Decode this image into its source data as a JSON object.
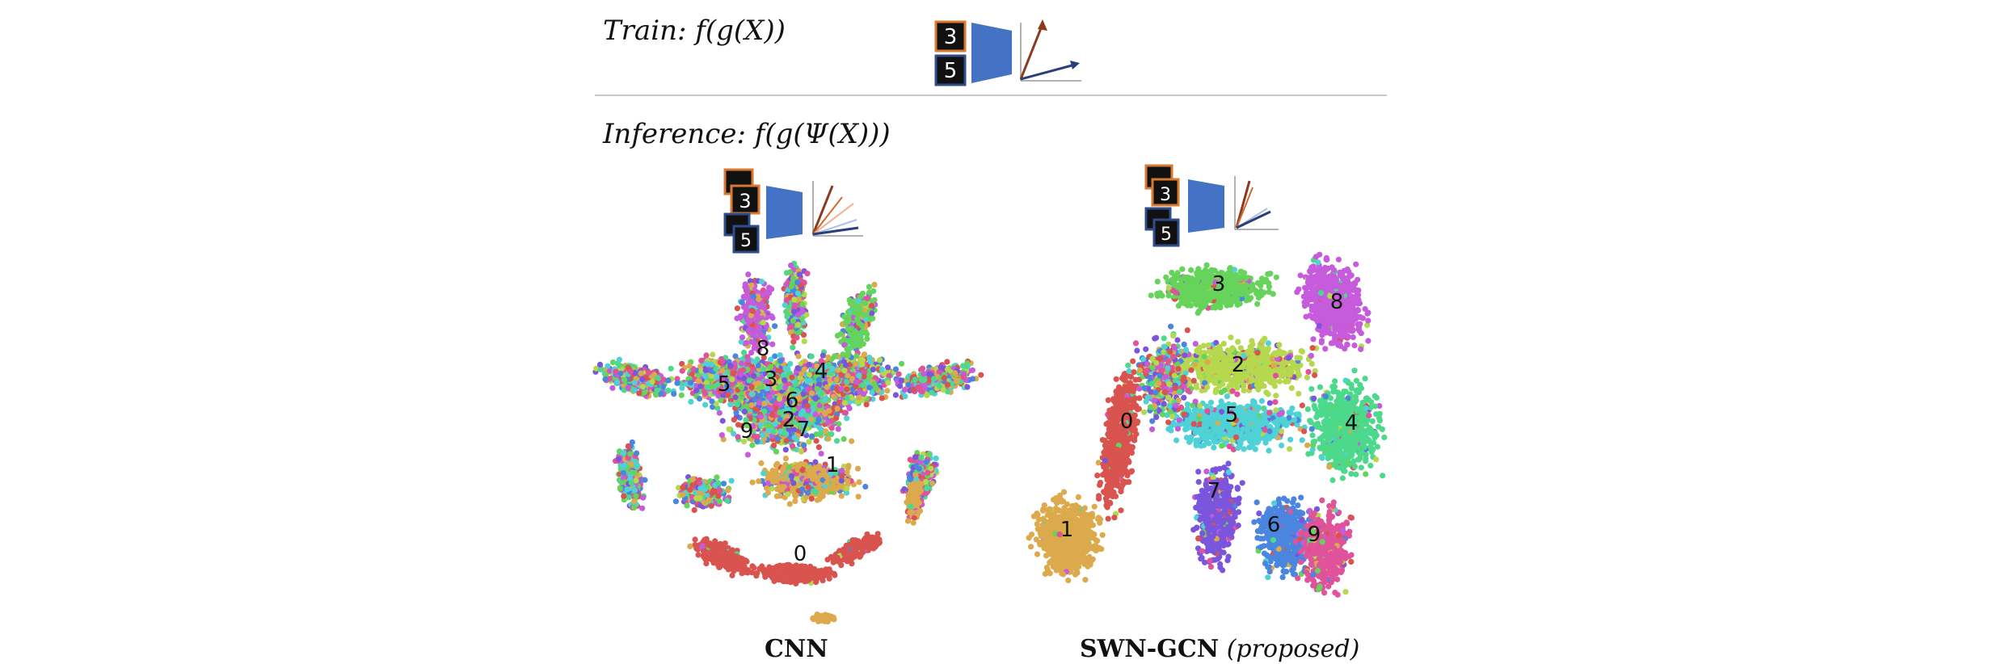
{
  "train": {
    "label": "Train",
    "formula": ": f(g(X))"
  },
  "inference": {
    "label": "Inference",
    "formula": ": f(g(Ψ(X)))"
  },
  "train_digits": [
    "3",
    "5"
  ],
  "panels": [
    {
      "id": "cnn",
      "caption_bold": "CNN",
      "caption_italic": "",
      "cluster_labels": [
        "8",
        "3",
        "4",
        "5",
        "6",
        "2",
        "9",
        "7",
        "1",
        "0"
      ]
    },
    {
      "id": "swn",
      "caption_bold": "SWN-GCN",
      "caption_italic": "(proposed)",
      "cluster_labels": [
        "3",
        "8",
        "2",
        "0",
        "5",
        "4",
        "7",
        "1",
        "6",
        "9"
      ]
    }
  ],
  "colors": {
    "d0": "#d9534f",
    "d1": "#dcaa4c",
    "d2": "#b5d84e",
    "d3": "#66d35a",
    "d4": "#4cd98c",
    "d5": "#4fd2d6",
    "d6": "#4a86e0",
    "d7": "#7b55dc",
    "d8": "#c65bdc",
    "d9": "#e0529a",
    "encoder": "#4472c4",
    "vector_warm": "#8b3a1e",
    "vector_cool": "#2a3f7a"
  }
}
